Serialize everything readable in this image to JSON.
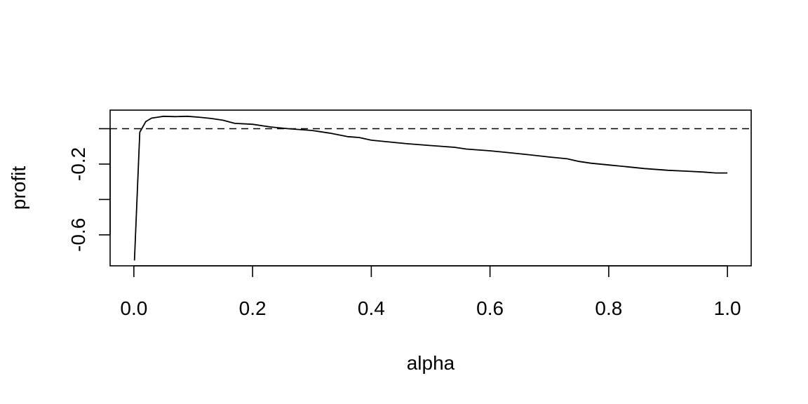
{
  "chart_data": {
    "type": "line",
    "title": "",
    "xlabel": "alpha",
    "ylabel": "profit",
    "xlim": [
      -0.04,
      1.04
    ],
    "ylim": [
      -0.775,
      0.105
    ],
    "xticks": [
      0.0,
      0.2,
      0.4,
      0.6,
      0.8,
      1.0
    ],
    "xtick_labels": [
      "0.0",
      "0.2",
      "0.4",
      "0.6",
      "0.8",
      "1.0"
    ],
    "yticks": [
      -0.6,
      -0.4,
      -0.2,
      0.0
    ],
    "ytick_labels": [
      "-0.6",
      "",
      "-0.2",
      ""
    ],
    "grid": false,
    "reference_line": {
      "y": 0,
      "style": "dashed"
    },
    "series": [
      {
        "x": [
          0.001,
          0.01,
          0.02,
          0.03,
          0.04,
          0.05,
          0.07,
          0.09,
          0.11,
          0.13,
          0.15,
          0.17,
          0.2,
          0.23,
          0.26,
          0.3,
          0.33,
          0.36,
          0.38,
          0.4,
          0.43,
          0.46,
          0.5,
          0.54,
          0.56,
          0.6,
          0.63,
          0.66,
          0.7,
          0.73,
          0.75,
          0.77,
          0.8,
          0.83,
          0.86,
          0.9,
          0.93,
          0.96,
          0.98,
          1.0
        ],
        "y": [
          -0.745,
          -0.02,
          0.04,
          0.06,
          0.065,
          0.07,
          0.068,
          0.07,
          0.065,
          0.058,
          0.048,
          0.03,
          0.025,
          0.01,
          0.0,
          -0.01,
          -0.025,
          -0.045,
          -0.05,
          -0.065,
          -0.075,
          -0.085,
          -0.095,
          -0.105,
          -0.115,
          -0.125,
          -0.135,
          -0.145,
          -0.16,
          -0.17,
          -0.185,
          -0.195,
          -0.205,
          -0.215,
          -0.225,
          -0.235,
          -0.24,
          -0.245,
          -0.25,
          -0.25
        ],
        "color": "#000000"
      }
    ]
  }
}
